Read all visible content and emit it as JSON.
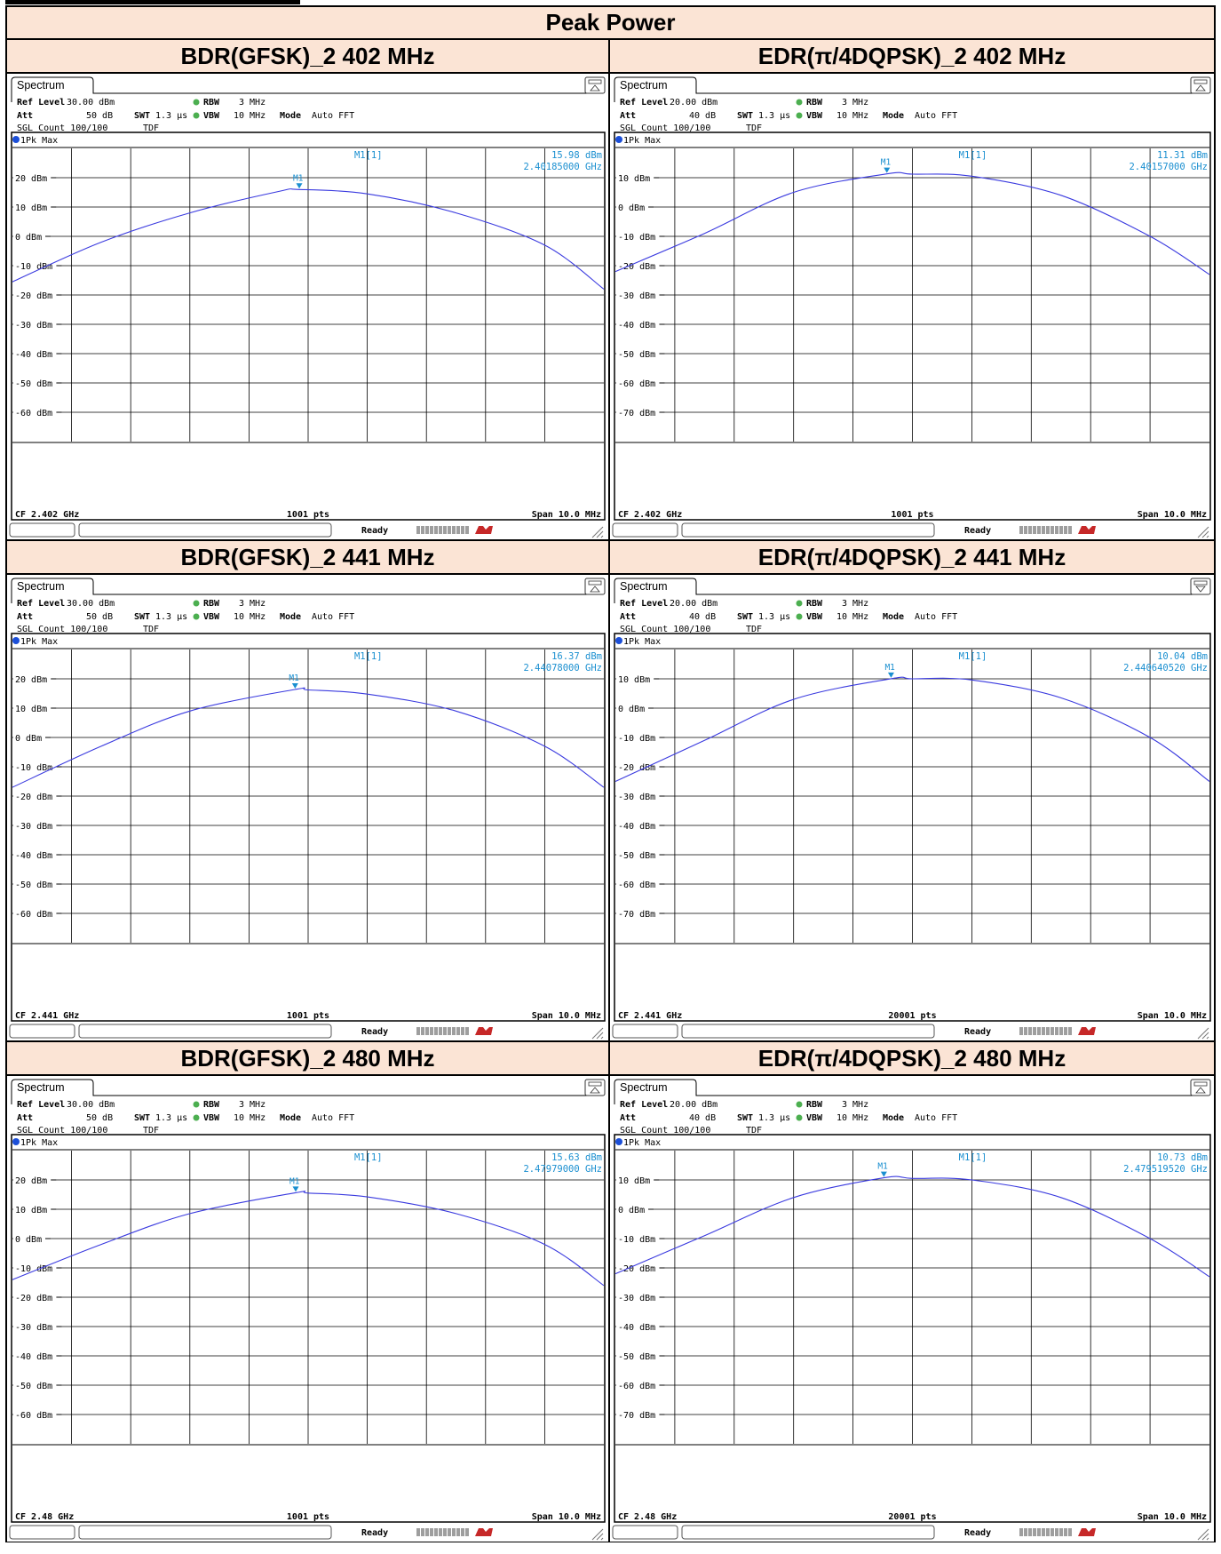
{
  "page_title": "Peak Power",
  "panels": [
    {
      "header": "BDR(GFSK)_2 402 MHz",
      "tab": "Spectrum",
      "ref_level": "30.00 dBm",
      "att": "50 dB",
      "swt": "1.3 µs",
      "rbw": "3 MHz",
      "vbw": "10 MHz",
      "mode": "Auto FFT",
      "sgl_count": "SGL Count 100/100",
      "tdf": "TDF",
      "trace": "1Pk Max",
      "marker_label": "M1[1]",
      "marker_level": "15.98 dBm",
      "marker_freq": "2.40185000 GHz",
      "cf": "CF 2.402 GHz",
      "pts": "1001 pts",
      "span": "Span 10.0 MHz",
      "status": "Ready",
      "y_ticks": [
        "20 dBm",
        "10 dBm",
        "0 dBm",
        "-10 dBm",
        "-20 dBm",
        "-30 dBm",
        "-40 dBm",
        "-50 dBm",
        "-60 dBm"
      ],
      "tab_icon": "up-arrow-icon"
    },
    {
      "header": "EDR(π/4DQPSK)_2 402 MHz",
      "tab": "Spectrum",
      "ref_level": "20.00 dBm",
      "att": "40 dB",
      "swt": "1.3 µs",
      "rbw": "3 MHz",
      "vbw": "10 MHz",
      "mode": "Auto FFT",
      "sgl_count": "SGL Count 100/100",
      "tdf": "TDF",
      "trace": "1Pk Max",
      "marker_label": "M1[1]",
      "marker_level": "11.31 dBm",
      "marker_freq": "2.40157000 GHz",
      "cf": "CF 2.402 GHz",
      "pts": "1001 pts",
      "span": "Span 10.0 MHz",
      "status": "Ready",
      "y_ticks": [
        "10 dBm",
        "0 dBm",
        "-10 dBm",
        "-20 dBm",
        "-30 dBm",
        "-40 dBm",
        "-50 dBm",
        "-60 dBm",
        "-70 dBm"
      ],
      "tab_icon": "up-arrow-icon"
    },
    {
      "header": "BDR(GFSK)_2 441 MHz",
      "tab": "Spectrum",
      "ref_level": "30.00 dBm",
      "att": "50 dB",
      "swt": "1.3 µs",
      "rbw": "3 MHz",
      "vbw": "10 MHz",
      "mode": "Auto FFT",
      "sgl_count": "SGL Count 100/100",
      "tdf": "TDF",
      "trace": "1Pk Max",
      "marker_label": "M1[1]",
      "marker_level": "16.37 dBm",
      "marker_freq": "2.44078000 GHz",
      "cf": "CF 2.441 GHz",
      "pts": "1001 pts",
      "span": "Span 10.0 MHz",
      "status": "Ready",
      "y_ticks": [
        "20 dBm",
        "10 dBm",
        "0 dBm",
        "-10 dBm",
        "-20 dBm",
        "-30 dBm",
        "-40 dBm",
        "-50 dBm",
        "-60 dBm"
      ],
      "tab_icon": "up-arrow-icon"
    },
    {
      "header": "EDR(π/4DQPSK)_2 441 MHz",
      "tab": "Spectrum",
      "ref_level": "20.00 dBm",
      "att": "40 dB",
      "swt": "1.3 µs",
      "rbw": "3 MHz",
      "vbw": "10 MHz",
      "mode": "Auto FFT",
      "sgl_count": "SGL Count 100/100",
      "tdf": "TDF",
      "trace": "1Pk Max",
      "marker_label": "M1[1]",
      "marker_level": "10.04 dBm",
      "marker_freq": "2.440640520 GHz",
      "cf": "CF 2.441 GHz",
      "pts": "20001 pts",
      "span": "Span 10.0 MHz",
      "status": "Ready",
      "y_ticks": [
        "10 dBm",
        "0 dBm",
        "-10 dBm",
        "-20 dBm",
        "-30 dBm",
        "-40 dBm",
        "-50 dBm",
        "-60 dBm",
        "-70 dBm"
      ],
      "tab_icon": "down-arrow-icon"
    },
    {
      "header": "BDR(GFSK)_2 480 MHz",
      "tab": "Spectrum",
      "ref_level": "30.00 dBm",
      "att": "50 dB",
      "swt": "1.3 µs",
      "rbw": "3 MHz",
      "vbw": "10 MHz",
      "mode": "Auto FFT",
      "sgl_count": "SGL Count 100/100",
      "tdf": "TDF",
      "trace": "1Pk Max",
      "marker_label": "M1[1]",
      "marker_level": "15.63 dBm",
      "marker_freq": "2.47979000 GHz",
      "cf": "CF 2.48 GHz",
      "pts": "1001 pts",
      "span": "Span 10.0 MHz",
      "status": "Ready",
      "y_ticks": [
        "20 dBm",
        "10 dBm",
        "0 dBm",
        "-10 dBm",
        "-20 dBm",
        "-30 dBm",
        "-40 dBm",
        "-50 dBm",
        "-60 dBm"
      ],
      "tab_icon": "up-arrow-icon"
    },
    {
      "header": "EDR(π/4DQPSK)_2 480 MHz",
      "tab": "Spectrum",
      "ref_level": "20.00 dBm",
      "att": "40 dB",
      "swt": "1.3 µs",
      "rbw": "3 MHz",
      "vbw": "10 MHz",
      "mode": "Auto FFT",
      "sgl_count": "SGL Count 100/100",
      "tdf": "TDF",
      "trace": "1Pk Max",
      "marker_label": "M1[1]",
      "marker_level": "10.73 dBm",
      "marker_freq": "2.479519520 GHz",
      "cf": "CF 2.48 GHz",
      "pts": "20001 pts",
      "span": "Span 10.0 MHz",
      "status": "Ready",
      "y_ticks": [
        "10 dBm",
        "0 dBm",
        "-10 dBm",
        "-20 dBm",
        "-30 dBm",
        "-40 dBm",
        "-50 dBm",
        "-60 dBm",
        "-70 dBm"
      ],
      "tab_icon": "up-arrow-icon"
    }
  ],
  "colors": {
    "header_bg": "#fbe4d5",
    "trace": "#3a3adf",
    "marker": "#1a8fd0",
    "grid": "#000000"
  },
  "chart_data": [
    {
      "type": "line",
      "x_unit": "GHz",
      "y_unit": "dBm",
      "xlim": [
        2.397,
        2.407
      ],
      "ylim": [
        -70,
        30
      ],
      "series": [
        {
          "x": [
            2.397,
            2.3985,
            2.4,
            2.4015,
            2.40185,
            2.403,
            2.4045,
            2.406,
            2.407
          ],
          "values": [
            -15.5,
            -2,
            8,
            15.3,
            15.98,
            14.5,
            8,
            -3,
            -18
          ]
        }
      ],
      "marker": {
        "x": 2.40185,
        "y": 15.98
      }
    },
    {
      "type": "line",
      "x_unit": "GHz",
      "y_unit": "dBm",
      "xlim": [
        2.397,
        2.407
      ],
      "ylim": [
        -80,
        20
      ],
      "series": [
        {
          "x": [
            2.397,
            2.3985,
            2.4,
            2.40157,
            2.402,
            2.403,
            2.4045,
            2.406,
            2.407
          ],
          "values": [
            -22,
            -9,
            5,
            11.31,
            11.2,
            10.5,
            4,
            -10,
            -23
          ]
        }
      ],
      "marker": {
        "x": 2.40157,
        "y": 11.31
      }
    },
    {
      "type": "line",
      "x_unit": "GHz",
      "y_unit": "dBm",
      "xlim": [
        2.436,
        2.446
      ],
      "ylim": [
        -70,
        30
      ],
      "series": [
        {
          "x": [
            2.436,
            2.4375,
            2.439,
            2.44078,
            2.441,
            2.442,
            2.4435,
            2.445,
            2.446
          ],
          "values": [
            -17,
            -3,
            9,
            16.37,
            16.2,
            14.8,
            9,
            -3,
            -17
          ]
        }
      ],
      "marker": {
        "x": 2.44078,
        "y": 16.37
      }
    },
    {
      "type": "line",
      "x_unit": "GHz",
      "y_unit": "dBm",
      "xlim": [
        2.436,
        2.446
      ],
      "ylim": [
        -80,
        20
      ],
      "series": [
        {
          "x": [
            2.436,
            2.4375,
            2.439,
            2.44064052,
            2.441,
            2.442,
            2.4435,
            2.445,
            2.446
          ],
          "values": [
            -25,
            -11,
            3,
            10.04,
            10.0,
            9.6,
            3.5,
            -10,
            -25
          ]
        }
      ],
      "marker": {
        "x": 2.44064052,
        "y": 10.04
      }
    },
    {
      "type": "line",
      "x_unit": "GHz",
      "y_unit": "dBm",
      "xlim": [
        2.475,
        2.485
      ],
      "ylim": [
        -70,
        30
      ],
      "series": [
        {
          "x": [
            2.475,
            2.4765,
            2.478,
            2.47979,
            2.48,
            2.481,
            2.4825,
            2.484,
            2.485
          ],
          "values": [
            -14,
            -2,
            8.5,
            15.63,
            15.5,
            14.2,
            8.5,
            -2,
            -16
          ]
        }
      ],
      "marker": {
        "x": 2.47979,
        "y": 15.63
      }
    },
    {
      "type": "line",
      "x_unit": "GHz",
      "y_unit": "dBm",
      "xlim": [
        2.475,
        2.485
      ],
      "ylim": [
        -80,
        20
      ],
      "series": [
        {
          "x": [
            2.475,
            2.4765,
            2.478,
            2.47951952,
            2.48,
            2.481,
            2.4825,
            2.484,
            2.485
          ],
          "values": [
            -22,
            -9,
            4,
            10.73,
            10.5,
            10.0,
            4,
            -10,
            -23
          ]
        }
      ],
      "marker": {
        "x": 2.47951952,
        "y": 10.73
      }
    }
  ]
}
